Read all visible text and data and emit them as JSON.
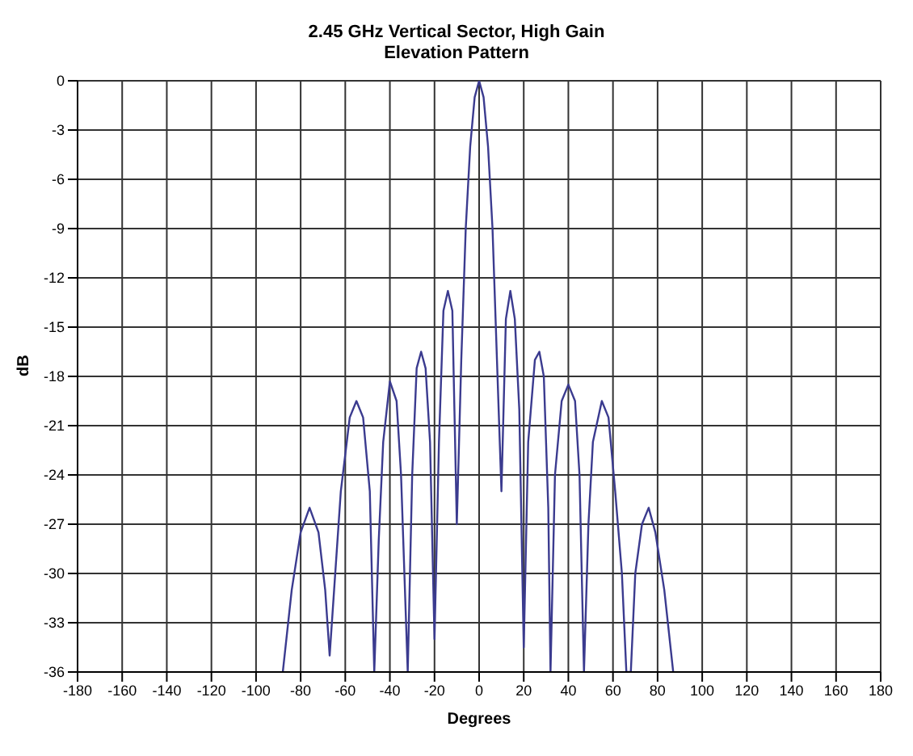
{
  "chart_data": {
    "type": "line",
    "title": "2.45 GHz Vertical Sector, High Gain",
    "subtitle": "Elevation Pattern",
    "xlabel": "Degrees",
    "ylabel": "dB",
    "xlim": [
      -180,
      180
    ],
    "xticks": [
      -180,
      -160,
      -140,
      -120,
      -100,
      -80,
      -60,
      -40,
      -20,
      0,
      20,
      40,
      60,
      80,
      100,
      120,
      140,
      160,
      180
    ],
    "ylim": [
      -36,
      0
    ],
    "yticks": [
      -36,
      -33,
      -30,
      -27,
      -24,
      -21,
      -18,
      -15,
      -12,
      -9,
      -6,
      -3,
      0
    ],
    "grid": true,
    "legend": false,
    "marker": "none",
    "line_style": "solid",
    "series": [
      {
        "color": "#3b3b8f",
        "x": [
          -88,
          -84,
          -80,
          -76,
          -72,
          -69,
          -67,
          -65,
          -62,
          -58,
          -55,
          -52,
          -49,
          -47,
          -45,
          -43,
          -40,
          -37,
          -35,
          -32,
          -30,
          -28,
          -26,
          -24,
          -22,
          -20,
          -18,
          -16,
          -14,
          -12,
          -10,
          -8,
          -6,
          -4,
          -2,
          0,
          2,
          4,
          6,
          8,
          10,
          12,
          14,
          16,
          18,
          20,
          22,
          25,
          27,
          29,
          31,
          32,
          34,
          37,
          40,
          43,
          45,
          47,
          49,
          51,
          55,
          58,
          61,
          64,
          66,
          68,
          70,
          73,
          76,
          79,
          83,
          87
        ],
        "values": [
          -36,
          -31,
          -27.5,
          -26,
          -27.5,
          -31,
          -35,
          -31,
          -25,
          -20.5,
          -19.5,
          -20.5,
          -25,
          -36,
          -28,
          -22,
          -18.3,
          -19.5,
          -24,
          -36,
          -24,
          -17.5,
          -16.5,
          -17.5,
          -22,
          -34,
          -22,
          -14,
          -12.8,
          -14,
          -27,
          -17,
          -9,
          -4,
          -1,
          0,
          -1,
          -4,
          -9,
          -17,
          -25,
          -14.5,
          -12.8,
          -14.5,
          -20,
          -34.5,
          -22,
          -17,
          -16.5,
          -18,
          -26,
          -36,
          -24,
          -19.5,
          -18.5,
          -19.5,
          -24,
          -36,
          -27,
          -22,
          -19.5,
          -20.5,
          -25,
          -30,
          -36,
          -36,
          -30,
          -27,
          -26,
          -27.5,
          -31,
          -36
        ]
      }
    ]
  }
}
